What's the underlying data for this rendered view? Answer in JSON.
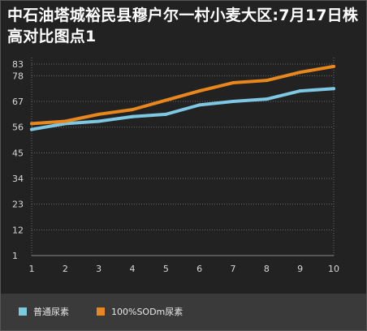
{
  "chart_data": {
    "type": "line",
    "title": "中石油塔城裕民县穆户尔一村小麦大区:7月17日株高对比图点1",
    "x": [
      1,
      2,
      3,
      4,
      5,
      6,
      7,
      8,
      9,
      10
    ],
    "yticks": [
      1,
      12,
      23,
      34,
      45,
      56,
      67,
      78,
      83
    ],
    "ylim": [
      1,
      83
    ],
    "xlim": [
      1,
      10
    ],
    "grid": true,
    "legend_position": "bottom",
    "series": [
      {
        "name": "普通尿素",
        "color": "#7ec8e3",
        "values": [
          55,
          57.5,
          58.5,
          60.5,
          61.5,
          65.5,
          67,
          68,
          71.5,
          72.5
        ]
      },
      {
        "name": "100%SODm尿素",
        "color": "#e8871e",
        "values": [
          57.5,
          58.5,
          61.5,
          63.5,
          67.5,
          71.5,
          75,
          76,
          79.5,
          82
        ]
      }
    ]
  }
}
